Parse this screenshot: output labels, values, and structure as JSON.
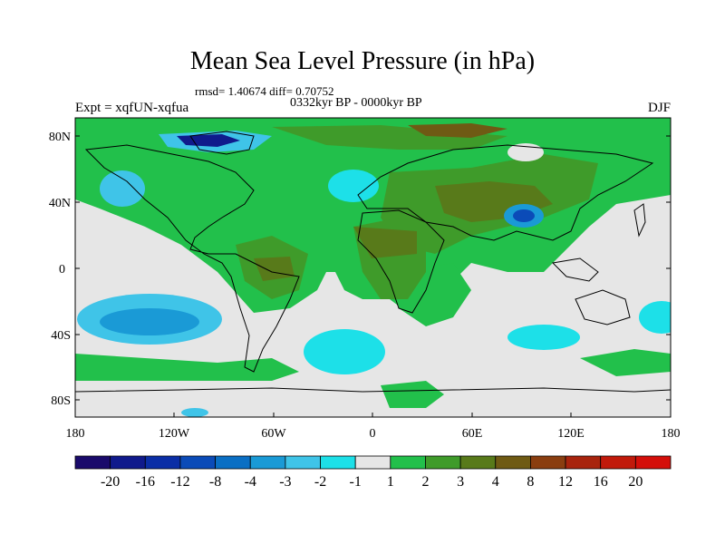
{
  "title": "Mean Sea Level Pressure (in hPa)",
  "stats": "rmsd= 1.40674  diff= 0.70752",
  "period": "0332kyr BP - 0000kyr BP",
  "experiment": "Expt = xqfUN-xqfua",
  "season": "DJF",
  "axes": {
    "lat_ticks": [
      "80N",
      "40N",
      "0",
      "40S",
      "80S"
    ],
    "lon_ticks": [
      "180",
      "120W",
      "60W",
      "0",
      "60E",
      "120E",
      "180"
    ]
  },
  "colorbar": {
    "labels": [
      "-20",
      "-16",
      "-12",
      "-8",
      "-4",
      "-3",
      "-2",
      "-1",
      "1",
      "2",
      "3",
      "4",
      "8",
      "12",
      "16",
      "20"
    ],
    "colors": [
      "#1a0a6b",
      "#101a8c",
      "#0b2ea6",
      "#0b4bb8",
      "#0a6fc4",
      "#1a9ad6",
      "#3fc4e8",
      "#1de0e8",
      "#e6e6e6",
      "#22c04b",
      "#3f9b2a",
      "#587a1a",
      "#6f5a14",
      "#8a3e10",
      "#a8240d",
      "#c11a0b",
      "#d40f0a"
    ]
  },
  "colors": {
    "ocean": "#e6e6e6",
    "land_outline": "#000000",
    "pos_small": "#22c04b",
    "pos_mid": "#3f9b2a",
    "pos_high": "#587a1a",
    "pos_max": "#6f5a14",
    "neg_small": "#1de0e8",
    "neg_mid": "#3fc4e8",
    "neg_deep": "#0a6fc4",
    "neg_extreme": "#101a8c"
  }
}
